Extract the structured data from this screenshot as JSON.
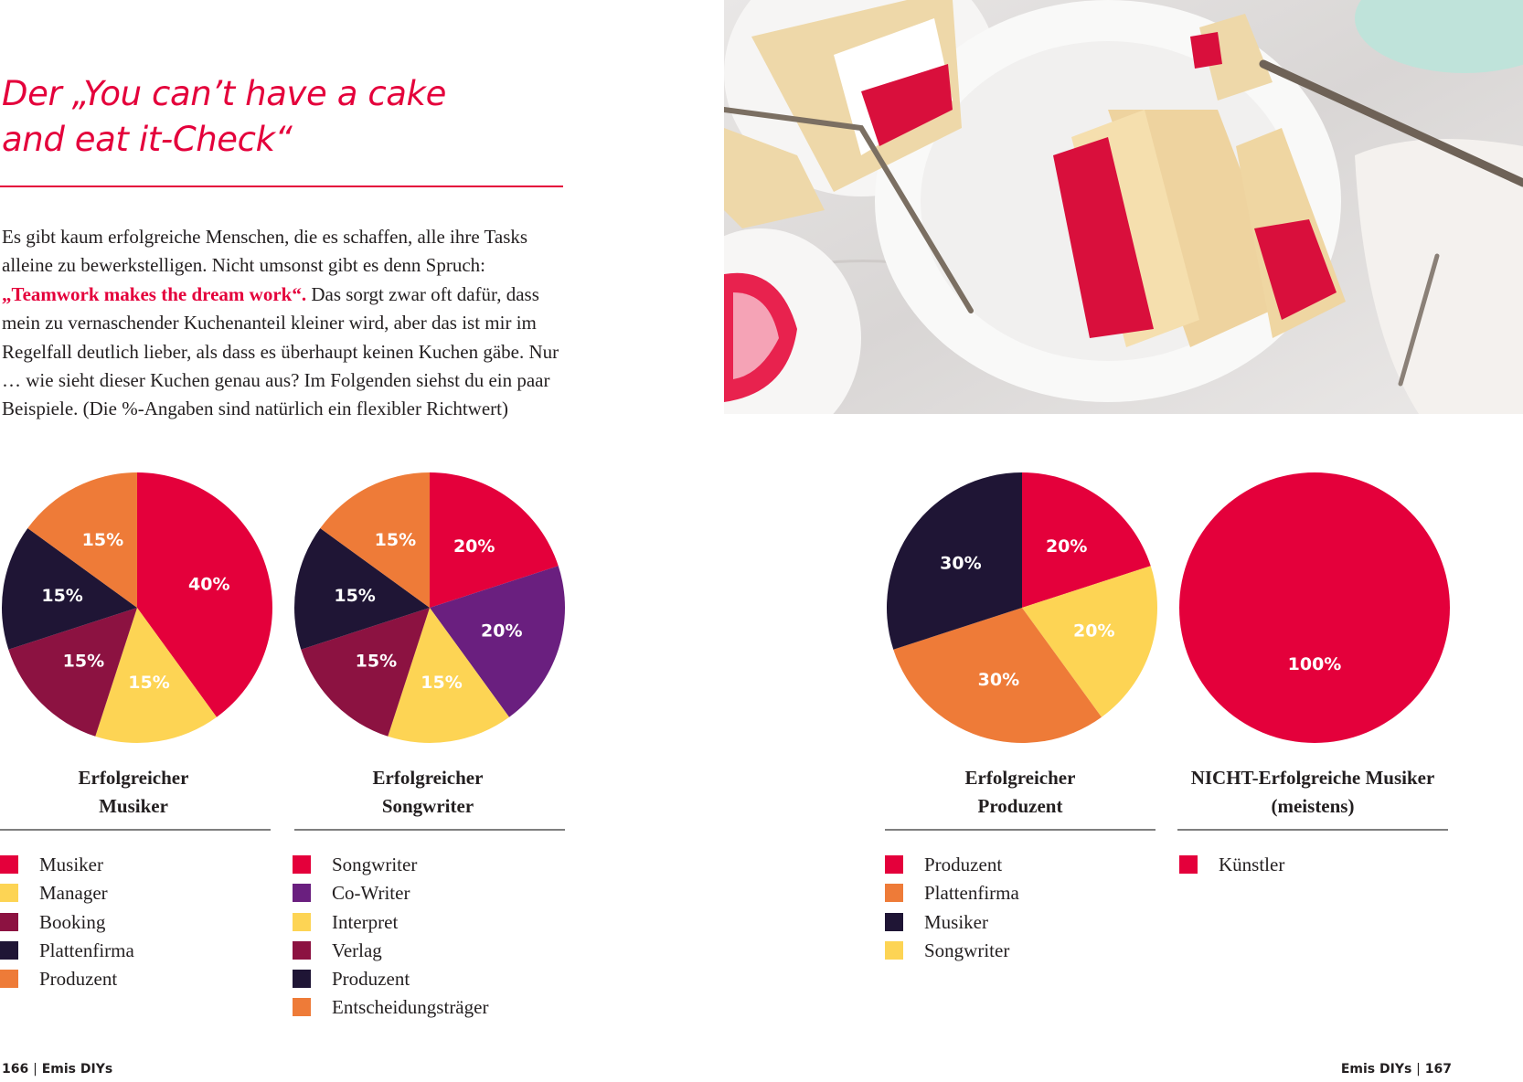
{
  "page_left": {
    "title_lines": [
      "Der „You can’t have a cake",
      "and eat it-Check“"
    ],
    "intro_before": "Es gibt kaum erfolgreiche Menschen, die es schaffen, alle ihre Tasks alleine zu bewerkstelligen. Nicht umsonst gibt es denn Spruch: ",
    "intro_highlight": "„Teamwork makes the dream work“.",
    "intro_after": " Das sorgt zwar oft dafür, dass mein zu vernaschender Kuchenanteil kleiner wird, aber das ist mir im Regelfall deutlich lieber, als dass es überhaupt keinen Kuchen gäbe. Nur … wie sieht dieser Kuchen genau aus? Im Folgenden siehst du ein paar Beispiele. (Die %-Angaben sind natürlich ein flexibler Richtwert)",
    "folio_number": "166",
    "folio_text": "Emis DIYs"
  },
  "page_right": {
    "photo_icon": "cake-photo",
    "folio_number": "167",
    "folio_text": "Emis DIYs"
  },
  "folio_separator": "|",
  "colors": {
    "accent": "#e4003b",
    "red": "#e4003b",
    "yellow": "#fdd454",
    "maroon": "#8c1241",
    "navy": "#1f1535",
    "orange": "#ee7b38",
    "purple": "#6a1f7f",
    "rule_gray": "#7f7f7f"
  },
  "chart_data": [
    {
      "type": "pie",
      "title_lines": [
        "Erfolgreicher",
        "Musiker"
      ],
      "slices": [
        {
          "label": "Musiker",
          "value": 40,
          "display": "40%",
          "color": "#e4003b"
        },
        {
          "label": "Manager",
          "value": 15,
          "display": "15%",
          "color": "#fdd454"
        },
        {
          "label": "Booking",
          "value": 15,
          "display": "15%",
          "color": "#8c1241"
        },
        {
          "label": "Plattenfirma",
          "value": 15,
          "display": "15%",
          "color": "#1f1535"
        },
        {
          "label": "Produzent",
          "value": 15,
          "display": "15%",
          "color": "#ee7b38"
        }
      ],
      "legend": [
        "Musiker",
        "Manager",
        "Booking",
        "Plattenfirma",
        "Produzent"
      ]
    },
    {
      "type": "pie",
      "title_lines": [
        "Erfolgreicher",
        "Songwriter"
      ],
      "slices": [
        {
          "label": "Songwriter",
          "value": 20,
          "display": "20%",
          "color": "#e4003b"
        },
        {
          "label": "Co-Writer",
          "value": 20,
          "display": "20%",
          "color": "#6a1f7f"
        },
        {
          "label": "Interpret",
          "value": 15,
          "display": "15%",
          "color": "#fdd454"
        },
        {
          "label": "Verlag",
          "value": 15,
          "display": "15%",
          "color": "#8c1241"
        },
        {
          "label": "Produzent",
          "value": 15,
          "display": "15%",
          "color": "#1f1535"
        },
        {
          "label": "Entscheidungsträger",
          "value": 15,
          "display": "15%",
          "color": "#ee7b38"
        }
      ],
      "legend": [
        "Songwriter",
        "Co-Writer",
        "Interpret",
        "Verlag",
        "Produzent",
        "Entscheidungsträger"
      ]
    },
    {
      "type": "pie",
      "title_lines": [
        "Erfolgreicher",
        "Produzent"
      ],
      "slices": [
        {
          "label": "Produzent",
          "value": 20,
          "display": "20%",
          "color": "#e4003b"
        },
        {
          "label": "Songwriter",
          "value": 20,
          "display": "20%",
          "color": "#fdd454"
        },
        {
          "label": "Plattenfirma",
          "value": 30,
          "display": "30%",
          "color": "#ee7b38"
        },
        {
          "label": "Musiker",
          "value": 30,
          "display": "30%",
          "color": "#1f1535"
        }
      ],
      "legend": [
        "Produzent",
        "Plattenfirma",
        "Musiker",
        "Songwriter"
      ]
    },
    {
      "type": "pie",
      "title_lines": [
        "NICHT-Erfolgreiche Musiker",
        "(meistens)"
      ],
      "slices": [
        {
          "label": "Künstler",
          "value": 100,
          "display": "100%",
          "color": "#e4003b"
        }
      ],
      "legend": [
        "Künstler"
      ]
    }
  ]
}
